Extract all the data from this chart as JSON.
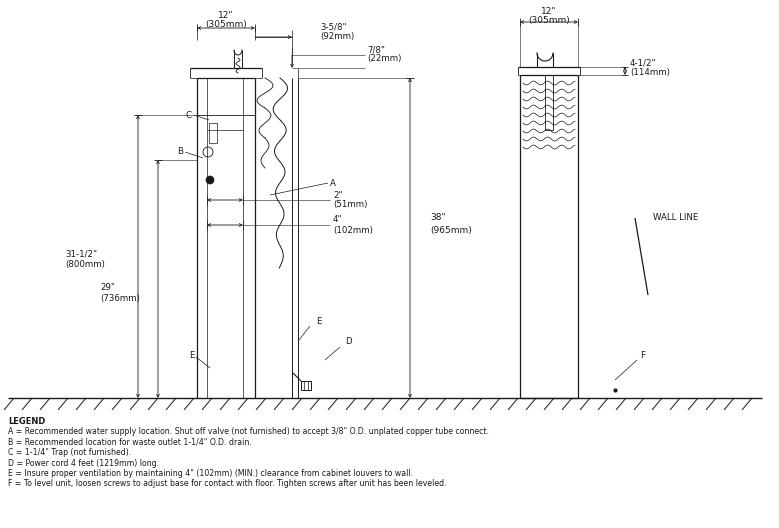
{
  "bg_color": "#ffffff",
  "line_color": "#1a1a1a",
  "fig_width": 7.79,
  "fig_height": 5.28,
  "legend_lines": [
    "LEGEND",
    "A = Recommended water supply location. Shut off valve (not furnished) to accept 3/8\" O.D. unplated copper tube connect.",
    "B = Recommended location for waste outlet 1-1/4\" O.D. drain.",
    "C = 1-1/4\" Trap (not furnished).",
    "D = Power cord 4 feet (1219mm) long.",
    "E = Insure proper ventilation by maintaining 4\" (102mm) (MIN.) clearance from cabinet louvers to wall.",
    "F = To level unit, loosen screws to adjust base for contact with floor. Tighten screws after unit has been leveled."
  ]
}
